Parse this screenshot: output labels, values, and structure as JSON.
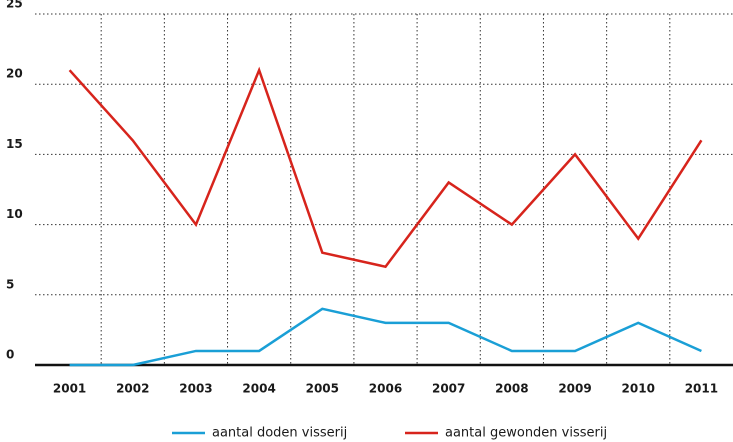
{
  "chart_data": {
    "type": "line",
    "categories": [
      "2001",
      "2002",
      "2003",
      "2004",
      "2005",
      "2006",
      "2007",
      "2008",
      "2009",
      "2010",
      "2011"
    ],
    "series": [
      {
        "name": "aantal doden visserij",
        "color": "#1a9fd6",
        "values": [
          0,
          0,
          1,
          1,
          4,
          3,
          3,
          1,
          1,
          3,
          1
        ]
      },
      {
        "name": "aantal gewonden visserij",
        "color": "#d7241c",
        "values": [
          21,
          16,
          10,
          21,
          8,
          7,
          13,
          10,
          15,
          9,
          16
        ]
      }
    ],
    "ylim": [
      0,
      25
    ],
    "yticks": [
      0,
      5,
      10,
      15,
      20,
      25
    ],
    "grid": true,
    "legend": "bottom"
  }
}
